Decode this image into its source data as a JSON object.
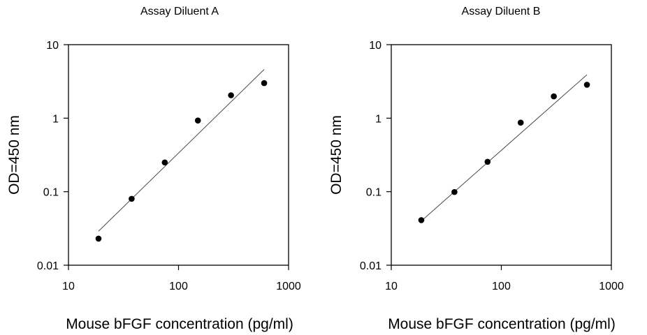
{
  "chart_data": [
    {
      "type": "scatter",
      "title": "Assay Diluent A",
      "xlabel": "Mouse bFGF concentration (pg/ml)",
      "ylabel": "OD=450 nm",
      "xscale": "log",
      "yscale": "log",
      "xlim": [
        10,
        1000
      ],
      "ylim": [
        0.01,
        10
      ],
      "xticks": [
        "10",
        "100",
        "1000"
      ],
      "yticks": [
        "0.01",
        "0.1",
        "1",
        "10"
      ],
      "grid": false,
      "series": [
        {
          "x": [
            18.75,
            37.5,
            75,
            150,
            300,
            600
          ],
          "y": [
            0.023,
            0.08,
            0.25,
            0.93,
            2.05,
            3.0
          ]
        }
      ],
      "fit_line": {
        "x": [
          18.75,
          600
        ],
        "y": [
          0.029,
          4.6
        ]
      }
    },
    {
      "type": "scatter",
      "title": "Assay Diluent B",
      "xlabel": "Mouse bFGF concentration (pg/ml)",
      "ylabel": "OD=450 nm",
      "xscale": "log",
      "yscale": "log",
      "xlim": [
        10,
        1000
      ],
      "ylim": [
        0.01,
        10
      ],
      "xticks": [
        "10",
        "100",
        "1000"
      ],
      "yticks": [
        "0.01",
        "0.1",
        "1",
        "10"
      ],
      "grid": false,
      "series": [
        {
          "x": [
            18.75,
            37.5,
            75,
            150,
            300,
            600
          ],
          "y": [
            0.041,
            0.099,
            0.255,
            0.87,
            1.98,
            2.85
          ]
        }
      ],
      "fit_line": {
        "x": [
          18.75,
          600
        ],
        "y": [
          0.04,
          3.9
        ]
      }
    }
  ]
}
